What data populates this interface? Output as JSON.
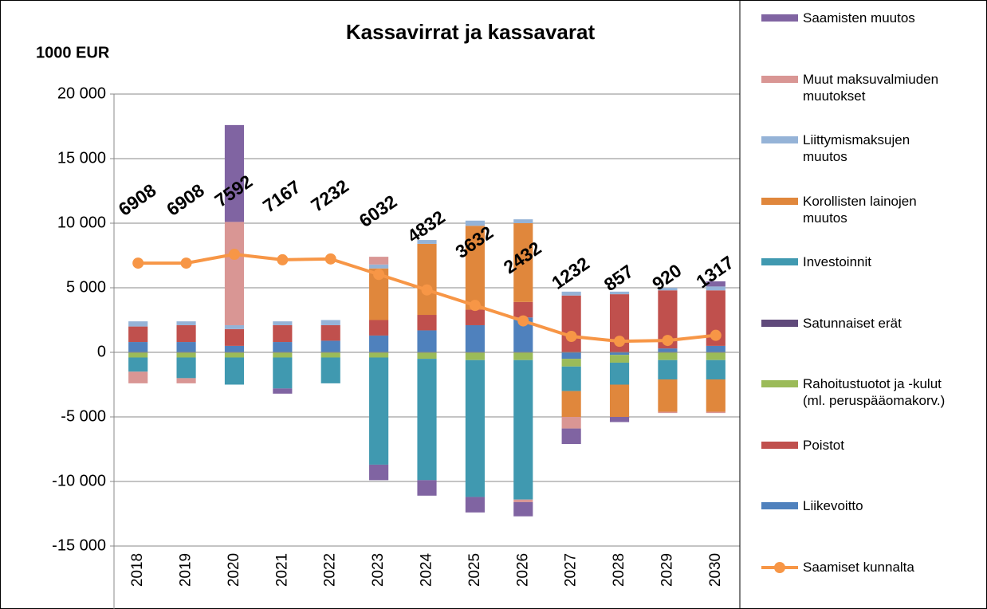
{
  "chart_data": {
    "type": "bar",
    "title": "Kassavirrat ja kassavarat",
    "y_label": "1000 EUR",
    "categories": [
      "2018",
      "2019",
      "2020",
      "2021",
      "2022",
      "2023",
      "2024",
      "2025",
      "2026",
      "2027",
      "2028",
      "2029",
      "2030"
    ],
    "ylim": [
      -15000,
      20000
    ],
    "yticks": [
      {
        "value": -15000,
        "label": "-15 000"
      },
      {
        "value": -10000,
        "label": "-10 000"
      },
      {
        "value": -5000,
        "label": "-5 000"
      },
      0,
      {
        "value": 5000,
        "label": "5 000"
      },
      {
        "value": 10000,
        "label": "10 000"
      },
      {
        "value": 15000,
        "label": "15 000"
      },
      {
        "value": 20000,
        "label": "20 000"
      }
    ],
    "grid": true,
    "legend": "right",
    "series": [
      {
        "name": "Saamisten muutos",
        "color": "#8064a2",
        "values": [
          0,
          0,
          7500,
          -400,
          0,
          -1200,
          -1200,
          -1200,
          -1100,
          -1200,
          -400,
          0,
          400
        ]
      },
      {
        "name": "Muut maksuvalmiuden muutokset",
        "color": "#d99694",
        "values": [
          -900,
          -400,
          8000,
          0,
          0,
          600,
          0,
          0,
          -200,
          -900,
          0,
          -100,
          -100
        ]
      },
      {
        "name": "Liittymismaksujen muutos",
        "color": "#95b3d7",
        "values": [
          400,
          300,
          300,
          300,
          400,
          300,
          300,
          400,
          300,
          300,
          200,
          200,
          300
        ]
      },
      {
        "name": "Korollisten lainojen muutos",
        "color": "#e0873c",
        "values": [
          0,
          0,
          0,
          0,
          0,
          4000,
          5500,
          6500,
          6100,
          -2000,
          -2500,
          -2500,
          -2500
        ]
      },
      {
        "name": "Investoinnit",
        "color": "#4099b0",
        "values": [
          -1100,
          -1600,
          -2100,
          -2400,
          -2000,
          -8300,
          -9400,
          -10600,
          -10800,
          -1900,
          -1700,
          -1500,
          -1500
        ]
      },
      {
        "name": "Satunnaiset erät",
        "color": "#604a7b",
        "values": [
          0,
          0,
          0,
          0,
          0,
          0,
          0,
          0,
          0,
          0,
          0,
          0,
          0
        ]
      },
      {
        "name": "Rahoitustuotot ja -kulut (ml. peruspääomakorv.)",
        "color": "#9bbb59",
        "values": [
          -400,
          -400,
          -400,
          -400,
          -400,
          -400,
          -500,
          -600,
          -600,
          -600,
          -600,
          -600,
          -600
        ]
      },
      {
        "name": "Poistot",
        "color": "#c0504d",
        "values": [
          1200,
          1300,
          1300,
          1300,
          1200,
          1200,
          1200,
          1200,
          1200,
          4400,
          4500,
          4500,
          4300
        ]
      },
      {
        "name": "Liikevoitto",
        "color": "#4f81bd",
        "values": [
          800,
          800,
          500,
          800,
          900,
          1300,
          1700,
          2100,
          2700,
          -500,
          -200,
          300,
          500
        ]
      },
      {
        "name": "Saamiset kunnalta",
        "type": "line",
        "color": "#f79646",
        "values": [
          6908,
          6908,
          7592,
          7167,
          7232,
          6032,
          4832,
          3632,
          2432,
          1232,
          857,
          920,
          1317
        ]
      }
    ]
  }
}
